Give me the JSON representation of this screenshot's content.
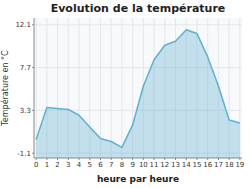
{
  "chart_data": {
    "type": "area",
    "title": "Evolution de la température",
    "xlabel": "heure par heure",
    "ylabel": "Température en °C",
    "x": [
      0,
      1,
      2,
      3,
      4,
      5,
      6,
      7,
      8,
      9,
      10,
      11,
      12,
      13,
      14,
      15,
      16,
      17,
      18,
      19
    ],
    "values": [
      0.3,
      3.6,
      3.5,
      3.4,
      2.8,
      1.6,
      0.4,
      0.1,
      -0.5,
      1.8,
      5.8,
      8.5,
      10.0,
      10.4,
      11.6,
      11.2,
      8.8,
      5.8,
      2.3,
      2.0
    ],
    "color": "#60b0d0",
    "xlim": [
      -0.2,
      19.2
    ],
    "xticks": [
      0,
      1,
      2,
      3,
      4,
      5,
      6,
      7,
      8,
      9,
      10,
      11,
      12,
      13,
      14,
      15,
      16,
      17,
      18,
      19
    ],
    "ylim": [
      -1.6,
      12.8
    ],
    "yticks": [
      -1.1,
      3.3,
      7.7,
      12.1
    ],
    "grid": true
  }
}
